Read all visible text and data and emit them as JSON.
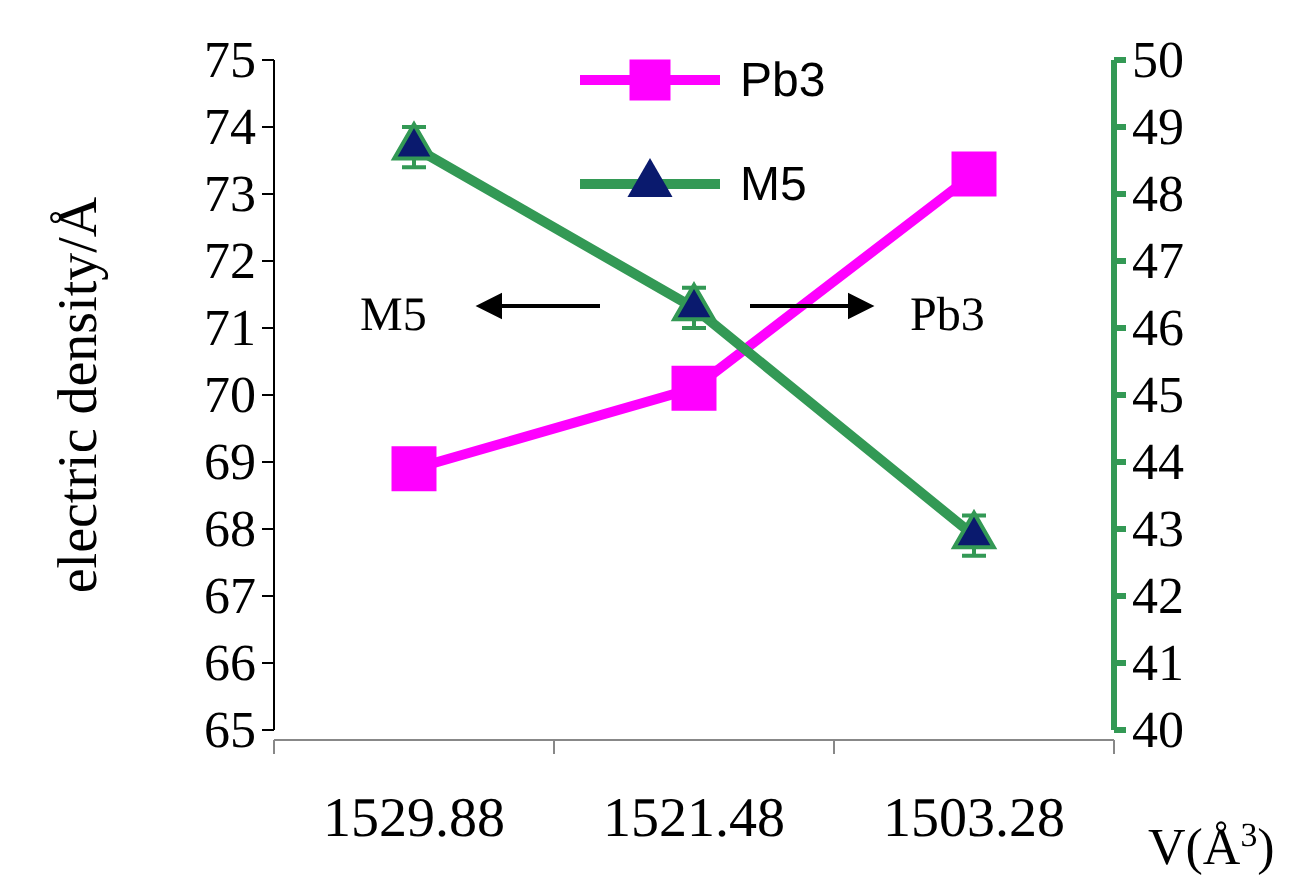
{
  "chart_data": {
    "type": "line",
    "ylabel": "electric density/Å",
    "xlabel": "V(Å$^{3}$)",
    "categories": [
      "1529.88",
      "1521.48",
      "1503.28"
    ],
    "ylim": [
      65,
      75
    ],
    "yticks": [
      65,
      66,
      67,
      68,
      69,
      70,
      71,
      72,
      73,
      74,
      75
    ],
    "y2lim": [
      40,
      50
    ],
    "y2ticks": [
      40,
      41,
      42,
      43,
      44,
      45,
      46,
      47,
      48,
      49,
      50
    ],
    "series": [
      {
        "name": "Pb3",
        "color": "#ff00ff",
        "axis": "y2",
        "marker": "square",
        "values": [
          43.9,
          45.1,
          48.3
        ]
      },
      {
        "name": "M5",
        "color": "#339955",
        "axis": "y",
        "marker": "triangle",
        "values": [
          73.7,
          71.3,
          67.9
        ],
        "errors": [
          0.3,
          0.3,
          0.3
        ]
      }
    ],
    "annotations": [
      "M5",
      "Pb3"
    ],
    "legend": "top"
  }
}
